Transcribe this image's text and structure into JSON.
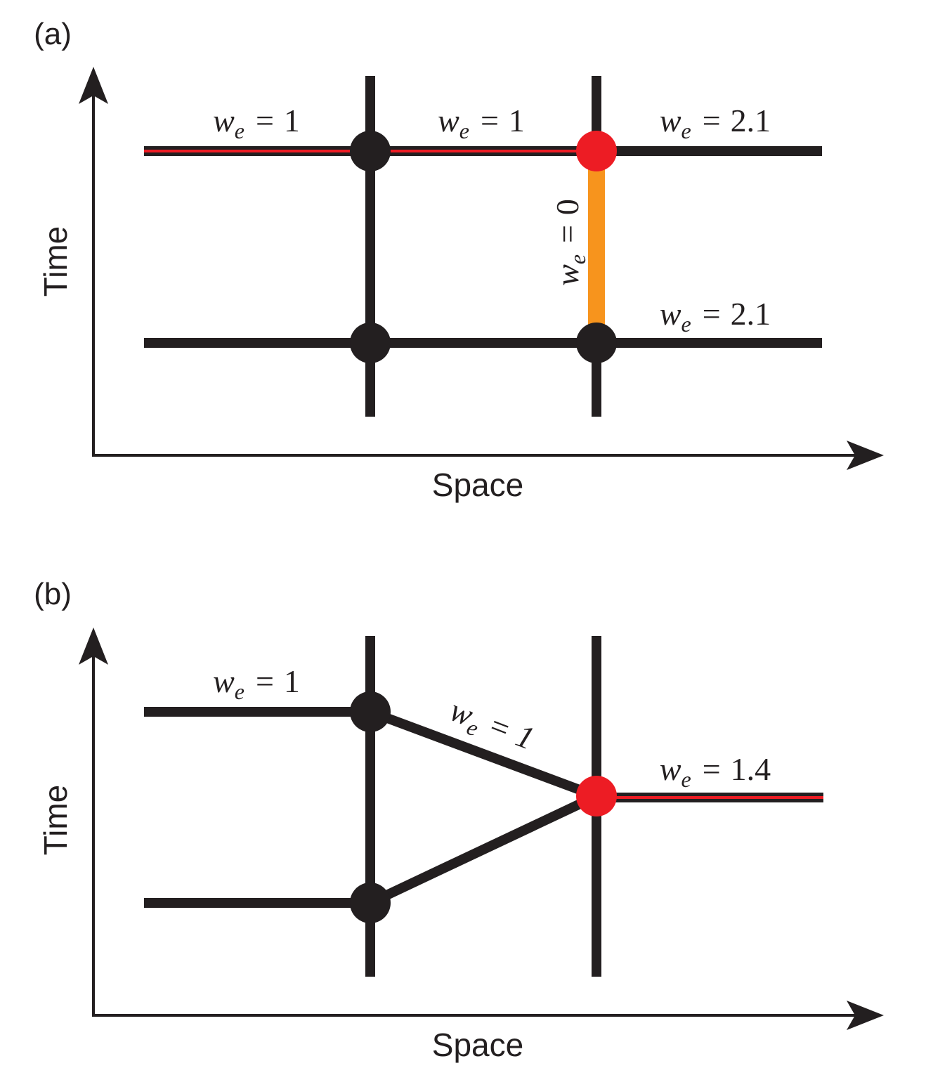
{
  "panels": [
    {
      "label": "(a)",
      "y_axis_label": "Time",
      "x_axis_label": "Space",
      "edge_labels": [
        {
          "symbol": "w",
          "subscript": "e",
          "relation": "=",
          "value": "1"
        },
        {
          "symbol": "w",
          "subscript": "e",
          "relation": "=",
          "value": "1"
        },
        {
          "symbol": "w",
          "subscript": "e",
          "relation": "=",
          "value": "2.1"
        },
        {
          "symbol": "w",
          "subscript": "e",
          "relation": "=",
          "value": "0"
        },
        {
          "symbol": "w",
          "subscript": "e",
          "relation": "=",
          "value": "2.1"
        }
      ]
    },
    {
      "label": "(b)",
      "y_axis_label": "Time",
      "x_axis_label": "Space",
      "edge_labels": [
        {
          "symbol": "w",
          "subscript": "e",
          "relation": "=",
          "value": "1"
        },
        {
          "symbol": "w",
          "subscript": "e",
          "relation": "=",
          "value": "1"
        },
        {
          "symbol": "w",
          "subscript": "e",
          "relation": "=",
          "value": "1.4"
        }
      ]
    }
  ]
}
